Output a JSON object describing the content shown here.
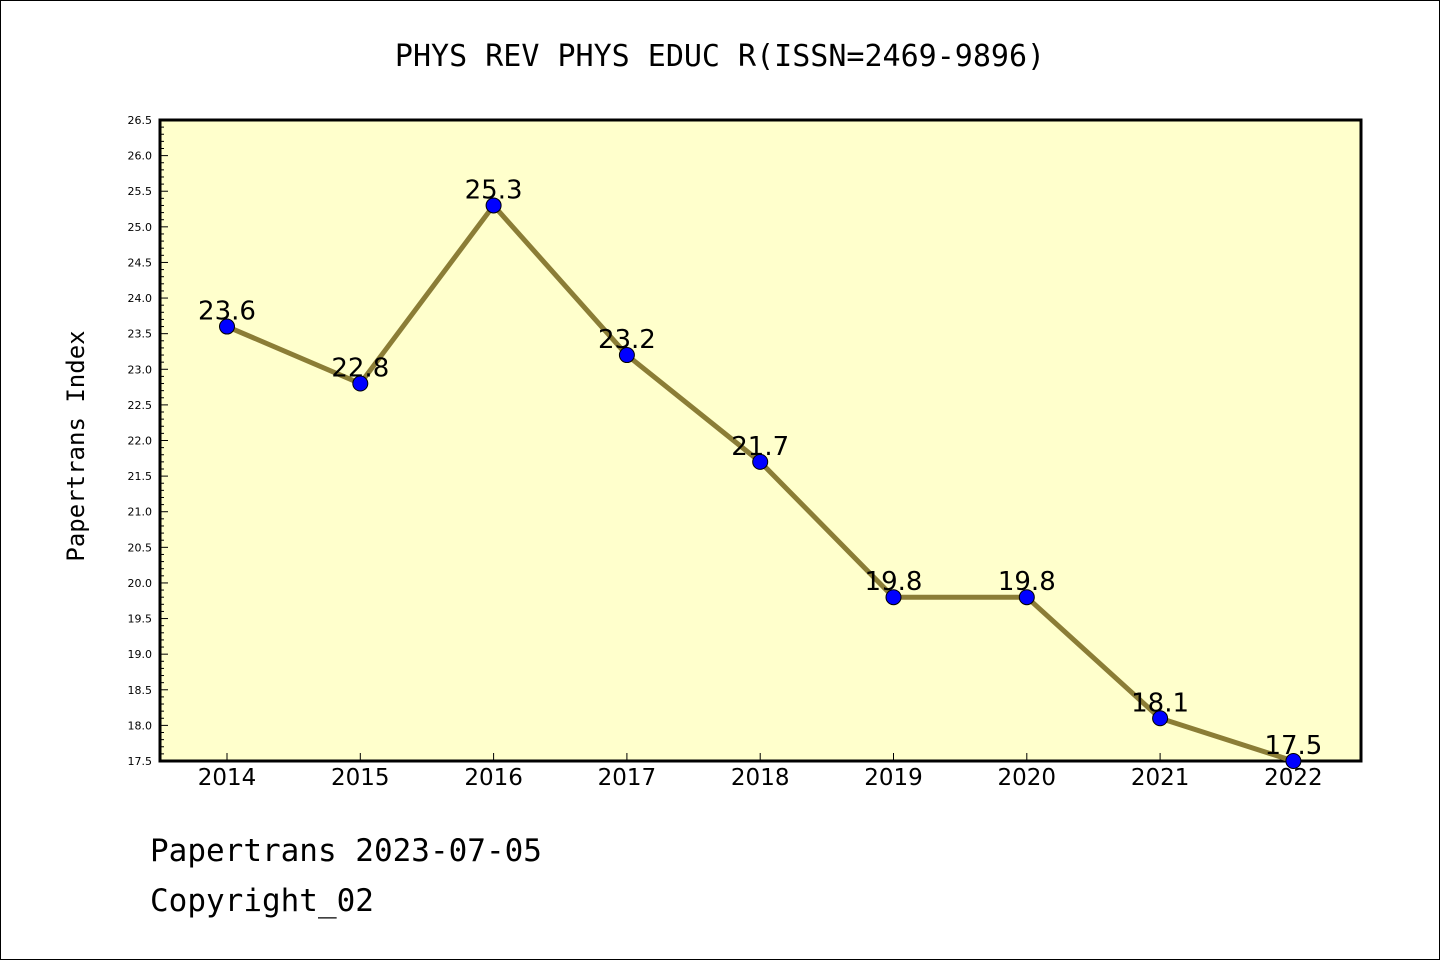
{
  "footer": {
    "line1": "Papertrans 2023-07-05",
    "line2": "Copyright_02"
  },
  "chart_data": {
    "type": "line",
    "title": "PHYS REV PHYS EDUC R(ISSN=2469-9896)",
    "xlabel": "",
    "ylabel": "Papertrans Index",
    "categories": [
      "2014",
      "2015",
      "2016",
      "2017",
      "2018",
      "2019",
      "2020",
      "2021",
      "2022"
    ],
    "values": [
      23.6,
      22.8,
      25.3,
      23.2,
      21.7,
      19.8,
      19.8,
      18.1,
      17.5
    ],
    "data_labels": [
      "23.6",
      "22.8",
      "25.3",
      "23.2",
      "21.7",
      "19.8",
      "19.8",
      "18.1",
      "17.5"
    ],
    "ylim": [
      17.5,
      26.5
    ],
    "yticks": [
      "17.5",
      "18.0",
      "18.5",
      "19.0",
      "19.5",
      "20.0",
      "20.5",
      "21.0",
      "21.5",
      "22.0",
      "22.5",
      "23.0",
      "23.5",
      "24.0",
      "24.5",
      "25.0",
      "25.5",
      "26.0",
      "26.5"
    ],
    "grid": false,
    "colors": {
      "plot_background": "#ffffcc",
      "line": "#8b7d36",
      "marker": "#0000ff"
    }
  }
}
